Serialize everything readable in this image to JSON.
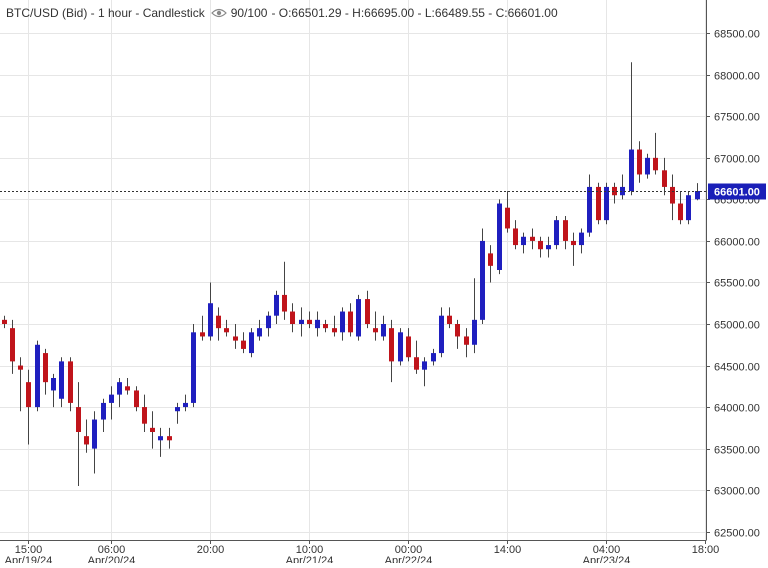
{
  "header": {
    "instrument": "BTC/USD (Bid) - 1 hour - Candlestick",
    "visibility": "90/100",
    "ohlc": "- O:66501.29 - H:66695.00 - L:66489.55 - C:66601.00"
  },
  "colors": {
    "up": "#1f1fbf",
    "down": "#c0141b",
    "grid": "#e6e6e6",
    "axis": "#555555",
    "price_tag_bg": "#1a1fb8"
  },
  "chart_data": {
    "type": "candlestick",
    "title": "BTC/USD (Bid) - 1 hour - Candlestick",
    "ylim": [
      62400,
      68900
    ],
    "y_ticks": [
      62500,
      63000,
      63500,
      64000,
      64500,
      65000,
      65500,
      66000,
      66500,
      67000,
      67500,
      68000,
      68500
    ],
    "y_tick_labels": [
      "62500.00",
      "63000.00",
      "63500.00",
      "64000.00",
      "64500.00",
      "65000.00",
      "65500.00",
      "66000.00",
      "66500.00",
      "67000.00",
      "67500.00",
      "68000.00",
      "68500.00"
    ],
    "x_ticks": [
      {
        "index": 3,
        "time": "15:00",
        "date": "Apr/19/24"
      },
      {
        "index": 13,
        "time": "06:00",
        "date": "Apr/20/24"
      },
      {
        "index": 25,
        "time": "20:00",
        "date": ""
      },
      {
        "index": 37,
        "time": "10:00",
        "date": "Apr/21/24"
      },
      {
        "index": 49,
        "time": "00:00",
        "date": "Apr/22/24"
      },
      {
        "index": 61,
        "time": "14:00",
        "date": ""
      },
      {
        "index": 73,
        "time": "04:00",
        "date": "Apr/23/24"
      },
      {
        "index": 85,
        "time": "18:00",
        "date": ""
      }
    ],
    "last_price": 66601.0,
    "last_price_label": "66601.00",
    "candles": [
      [
        65050,
        65100,
        64950,
        65000
      ],
      [
        64950,
        65050,
        64400,
        64550
      ],
      [
        64500,
        64600,
        63950,
        64450
      ],
      [
        64300,
        64450,
        63550,
        64000
      ],
      [
        64000,
        64800,
        63950,
        64750
      ],
      [
        64650,
        64700,
        64150,
        64300
      ],
      [
        64200,
        64400,
        64000,
        64350
      ],
      [
        64100,
        64600,
        64000,
        64550
      ],
      [
        64550,
        64600,
        63950,
        64050
      ],
      [
        64000,
        64300,
        63050,
        63700
      ],
      [
        63650,
        63850,
        63450,
        63550
      ],
      [
        63500,
        63950,
        63200,
        63850
      ],
      [
        63850,
        64100,
        63700,
        64050
      ],
      [
        64050,
        64250,
        63850,
        64150
      ],
      [
        64150,
        64350,
        64000,
        64300
      ],
      [
        64250,
        64350,
        64150,
        64200
      ],
      [
        64200,
        64250,
        63950,
        64000
      ],
      [
        64000,
        64150,
        63700,
        63800
      ],
      [
        63750,
        63950,
        63500,
        63700
      ],
      [
        63600,
        63750,
        63400,
        63650
      ],
      [
        63650,
        63750,
        63500,
        63600
      ],
      [
        63950,
        64050,
        63800,
        64000
      ],
      [
        64000,
        64150,
        63950,
        64050
      ],
      [
        64050,
        65000,
        64000,
        64900
      ],
      [
        64900,
        65100,
        64800,
        64850
      ],
      [
        64850,
        65500,
        64800,
        65250
      ],
      [
        65100,
        65200,
        64800,
        64950
      ],
      [
        64950,
        65050,
        64850,
        64900
      ],
      [
        64850,
        65000,
        64700,
        64800
      ],
      [
        64800,
        64900,
        64650,
        64700
      ],
      [
        64650,
        64950,
        64600,
        64900
      ],
      [
        64850,
        65050,
        64800,
        64950
      ],
      [
        64950,
        65150,
        64850,
        65100
      ],
      [
        65100,
        65400,
        65000,
        65350
      ],
      [
        65350,
        65750,
        65050,
        65150
      ],
      [
        65150,
        65250,
        64900,
        65000
      ],
      [
        65000,
        65200,
        64850,
        65050
      ],
      [
        65050,
        65150,
        64950,
        65000
      ],
      [
        64950,
        65150,
        64850,
        65050
      ],
      [
        65000,
        65050,
        64900,
        64950
      ],
      [
        64950,
        65100,
        64850,
        64900
      ],
      [
        64900,
        65200,
        64800,
        65150
      ],
      [
        65150,
        65250,
        64850,
        64900
      ],
      [
        64850,
        65350,
        64800,
        65300
      ],
      [
        65300,
        65400,
        64950,
        65000
      ],
      [
        64950,
        65150,
        64800,
        64900
      ],
      [
        64850,
        65100,
        64800,
        65000
      ],
      [
        64950,
        65050,
        64300,
        64550
      ],
      [
        64550,
        64950,
        64500,
        64900
      ],
      [
        64850,
        64950,
        64550,
        64600
      ],
      [
        64600,
        64800,
        64400,
        64450
      ],
      [
        64450,
        64600,
        64250,
        64550
      ],
      [
        64550,
        64700,
        64500,
        64650
      ],
      [
        64650,
        65200,
        64600,
        65100
      ],
      [
        65100,
        65200,
        64950,
        65000
      ],
      [
        65000,
        65050,
        64700,
        64850
      ],
      [
        64850,
        64950,
        64600,
        64750
      ],
      [
        64750,
        65550,
        64650,
        65050
      ],
      [
        65050,
        66150,
        65000,
        66000
      ],
      [
        65850,
        65950,
        65500,
        65700
      ],
      [
        65650,
        66500,
        65600,
        66450
      ],
      [
        66400,
        66600,
        66100,
        66150
      ],
      [
        66150,
        66250,
        65900,
        65950
      ],
      [
        65950,
        66100,
        65850,
        66050
      ],
      [
        66050,
        66150,
        65900,
        66000
      ],
      [
        66000,
        66050,
        65800,
        65900
      ],
      [
        65900,
        66050,
        65800,
        65950
      ],
      [
        65950,
        66300,
        65900,
        66250
      ],
      [
        66250,
        66300,
        65900,
        66000
      ],
      [
        66000,
        66100,
        65700,
        65950
      ],
      [
        65950,
        66150,
        65850,
        66100
      ],
      [
        66100,
        66800,
        66050,
        66650
      ],
      [
        66650,
        66700,
        66200,
        66250
      ],
      [
        66250,
        66700,
        66200,
        66650
      ],
      [
        66650,
        66700,
        66450,
        66550
      ],
      [
        66550,
        66800,
        66500,
        66650
      ],
      [
        66600,
        68150,
        66550,
        67100
      ],
      [
        67100,
        67200,
        66700,
        66800
      ],
      [
        66800,
        67050,
        66750,
        67000
      ],
      [
        67000,
        67300,
        66800,
        66850
      ],
      [
        66850,
        67000,
        66550,
        66650
      ],
      [
        66650,
        66800,
        66250,
        66450
      ],
      [
        66450,
        66600,
        66200,
        66250
      ],
      [
        66250,
        66600,
        66200,
        66550
      ],
      [
        66501.29,
        66695.0,
        66489.55,
        66601.0
      ]
    ]
  }
}
